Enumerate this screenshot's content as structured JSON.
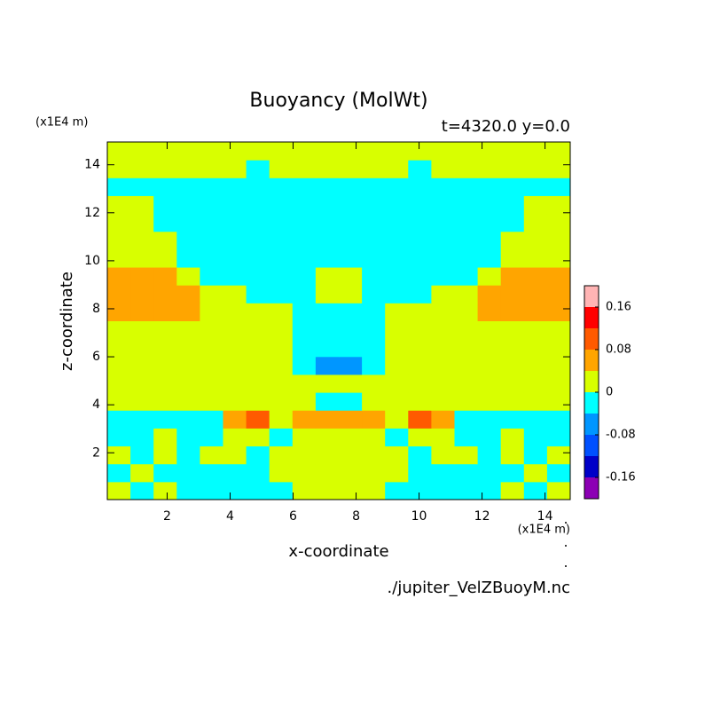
{
  "chart_data": {
    "type": "contourf",
    "title": "Buoyancy (MolWt)",
    "subtitle": "t=4320.0 y=0.0",
    "y_unit": "(x1E4 m)",
    "x_unit": "(x1E4 m)",
    "x_label": "x-coordinate",
    "y_label": "z-coordinate",
    "source": "./jupiter_VelZBuoyM.nc",
    "xlim": [
      0.1,
      14.8
    ],
    "ylim": [
      0.05,
      14.95
    ],
    "xticks": [
      2,
      4,
      6,
      8,
      10,
      12,
      14
    ],
    "yticks": [
      2,
      4,
      6,
      8,
      10,
      12,
      14
    ],
    "x": [
      0.47,
      1.2,
      1.94,
      2.67,
      3.41,
      4.14,
      4.88,
      5.61,
      6.35,
      7.08,
      7.82,
      8.55,
      9.29,
      10.02,
      10.76,
      11.49,
      12.23,
      12.96,
      13.7,
      14.43
    ],
    "y": [
      0.42,
      1.17,
      1.91,
      2.66,
      3.4,
      4.15,
      4.89,
      5.64,
      6.38,
      7.13,
      7.87,
      8.62,
      9.36,
      10.11,
      10.85,
      11.6,
      12.34,
      13.09,
      13.83,
      14.58
    ],
    "z": [
      [
        0.02,
        -0.02,
        0.02,
        -0.02,
        -0.02,
        -0.02,
        -0.02,
        -0.02,
        0.02,
        0.02,
        0.02,
        0.02,
        -0.02,
        -0.02,
        -0.02,
        -0.02,
        -0.02,
        0.02,
        -0.02,
        0.02
      ],
      [
        -0.02,
        0.02,
        -0.02,
        -0.02,
        -0.02,
        -0.02,
        -0.02,
        0.02,
        0.02,
        0.02,
        0.02,
        0.02,
        0.02,
        -0.02,
        -0.02,
        -0.02,
        -0.02,
        -0.02,
        0.02,
        -0.02
      ],
      [
        0.02,
        -0.02,
        0.02,
        -0.02,
        0.02,
        0.02,
        -0.02,
        0.02,
        0.02,
        0.02,
        0.02,
        0.02,
        0.02,
        -0.02,
        0.02,
        0.02,
        -0.02,
        0.02,
        -0.02,
        0.02
      ],
      [
        -0.02,
        -0.02,
        0.02,
        -0.02,
        -0.02,
        0.02,
        0.02,
        -0.02,
        0.02,
        0.02,
        0.02,
        0.02,
        -0.02,
        0.02,
        0.02,
        -0.02,
        -0.02,
        0.02,
        -0.02,
        -0.02
      ],
      [
        -0.02,
        -0.02,
        -0.02,
        -0.02,
        -0.02,
        0.06,
        0.1,
        0.02,
        0.06,
        0.06,
        0.06,
        0.06,
        0.02,
        0.1,
        0.06,
        -0.02,
        -0.02,
        -0.02,
        -0.02,
        -0.02
      ],
      [
        0.02,
        0.02,
        0.02,
        0.02,
        0.02,
        0.02,
        0.02,
        0.02,
        0.02,
        -0.02,
        -0.02,
        0.02,
        0.02,
        0.02,
        0.02,
        0.02,
        0.02,
        0.02,
        0.02,
        0.02
      ],
      [
        0.02,
        0.02,
        0.02,
        0.02,
        0.02,
        0.02,
        0.02,
        0.02,
        0.02,
        0.02,
        0.02,
        0.02,
        0.02,
        0.02,
        0.02,
        0.02,
        0.02,
        0.02,
        0.02,
        0.02
      ],
      [
        0.02,
        0.02,
        0.02,
        0.02,
        0.02,
        0.02,
        0.02,
        0.02,
        -0.02,
        -0.06,
        -0.06,
        -0.02,
        0.02,
        0.02,
        0.02,
        0.02,
        0.02,
        0.02,
        0.02,
        0.02
      ],
      [
        0.02,
        0.02,
        0.02,
        0.02,
        0.02,
        0.02,
        0.02,
        0.02,
        -0.02,
        -0.02,
        -0.02,
        -0.02,
        0.02,
        0.02,
        0.02,
        0.02,
        0.02,
        0.02,
        0.02,
        0.02
      ],
      [
        0.02,
        0.02,
        0.02,
        0.02,
        0.02,
        0.02,
        0.02,
        0.02,
        -0.02,
        -0.02,
        -0.02,
        -0.02,
        0.02,
        0.02,
        0.02,
        0.02,
        0.02,
        0.02,
        0.02,
        0.02
      ],
      [
        0.06,
        0.06,
        0.06,
        0.06,
        0.02,
        0.02,
        0.02,
        0.02,
        -0.02,
        -0.02,
        -0.02,
        -0.02,
        0.02,
        0.02,
        0.02,
        0.02,
        0.06,
        0.06,
        0.06,
        0.06
      ],
      [
        0.06,
        0.06,
        0.06,
        0.06,
        0.02,
        0.02,
        -0.02,
        -0.02,
        -0.02,
        0.02,
        0.02,
        -0.02,
        -0.02,
        -0.02,
        0.02,
        0.02,
        0.06,
        0.06,
        0.06,
        0.06
      ],
      [
        0.06,
        0.06,
        0.06,
        0.02,
        -0.02,
        -0.02,
        -0.02,
        -0.02,
        -0.02,
        0.02,
        0.02,
        -0.02,
        -0.02,
        -0.02,
        -0.02,
        -0.02,
        0.02,
        0.06,
        0.06,
        0.06
      ],
      [
        0.02,
        0.02,
        0.02,
        -0.02,
        -0.02,
        -0.02,
        -0.02,
        -0.02,
        -0.02,
        -0.02,
        -0.02,
        -0.02,
        -0.02,
        -0.02,
        -0.02,
        -0.02,
        -0.02,
        0.02,
        0.02,
        0.02
      ],
      [
        0.02,
        0.02,
        0.02,
        -0.02,
        -0.02,
        -0.02,
        -0.02,
        -0.02,
        -0.02,
        -0.02,
        -0.02,
        -0.02,
        -0.02,
        -0.02,
        -0.02,
        -0.02,
        -0.02,
        0.02,
        0.02,
        0.02
      ],
      [
        0.02,
        0.02,
        -0.02,
        -0.02,
        -0.02,
        -0.02,
        -0.02,
        -0.02,
        -0.02,
        -0.02,
        -0.02,
        -0.02,
        -0.02,
        -0.02,
        -0.02,
        -0.02,
        -0.02,
        -0.02,
        0.02,
        0.02
      ],
      [
        0.02,
        0.02,
        -0.02,
        -0.02,
        -0.02,
        -0.02,
        -0.02,
        -0.02,
        -0.02,
        -0.02,
        -0.02,
        -0.02,
        -0.02,
        -0.02,
        -0.02,
        -0.02,
        -0.02,
        -0.02,
        0.02,
        0.02
      ],
      [
        -0.02,
        -0.02,
        -0.02,
        -0.02,
        -0.02,
        -0.02,
        -0.02,
        -0.02,
        -0.02,
        -0.02,
        -0.02,
        -0.02,
        -0.02,
        -0.02,
        -0.02,
        -0.02,
        -0.02,
        -0.02,
        -0.02,
        -0.02
      ],
      [
        0.02,
        0.02,
        0.02,
        0.02,
        0.02,
        0.02,
        -0.02,
        0.02,
        0.02,
        0.02,
        0.02,
        0.02,
        0.02,
        -0.02,
        0.02,
        0.02,
        0.02,
        0.02,
        0.02,
        0.02
      ],
      [
        0.02,
        0.02,
        0.02,
        0.02,
        0.02,
        0.02,
        0.02,
        0.02,
        0.02,
        0.02,
        0.02,
        0.02,
        0.02,
        0.02,
        0.02,
        0.02,
        0.02,
        0.02,
        0.02,
        0.02
      ]
    ],
    "colorbar": {
      "levels": [
        -0.2,
        -0.16,
        -0.12,
        -0.08,
        -0.04,
        0,
        0.04,
        0.08,
        0.12,
        0.16,
        0.2
      ],
      "colors": [
        "#8c00b4",
        "#0000c8",
        "#0050ff",
        "#0096ff",
        "#00ffff",
        "#d8ff00",
        "#ffa500",
        "#ff5a00",
        "#ff0000",
        "#ffb4b4"
      ],
      "ticks": [
        0.16,
        0.08,
        0,
        -0.08,
        -0.16
      ]
    }
  }
}
